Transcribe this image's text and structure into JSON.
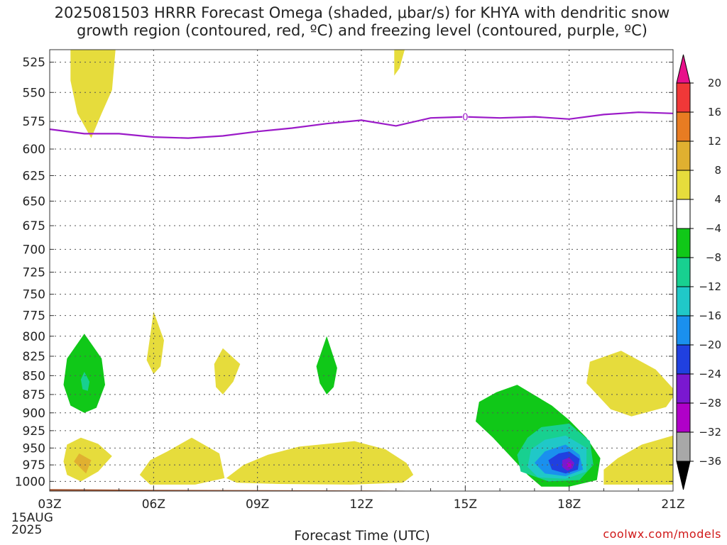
{
  "title": {
    "line1": "2025081503 HRRR Forecast Omega (shaded, μbar/s) for KHYA with dendritic snow",
    "line2": "growth region (contoured, red, ºC) and freezing level (contoured, purple, ºC)"
  },
  "watermark": "coolwx.com/models",
  "chart_data": {
    "type": "contour",
    "xlabel": "Forecast Time (UTC)",
    "x_ticks": [
      "03Z",
      "06Z",
      "09Z",
      "12Z",
      "15Z",
      "18Z",
      "21Z"
    ],
    "x_hours": [
      3,
      6,
      9,
      12,
      15,
      18,
      21
    ],
    "x_start_label": [
      "15AUG",
      "2025"
    ],
    "y_ticks": [
      525,
      550,
      575,
      600,
      625,
      650,
      675,
      700,
      725,
      750,
      775,
      800,
      825,
      850,
      875,
      900,
      925,
      950,
      975,
      1000
    ],
    "y_range": [
      515,
      1015
    ],
    "y_scale": "log-pressure",
    "grid": true,
    "colorbar": {
      "labels": [
        "20",
        "16",
        "12",
        "8",
        "4",
        "-4",
        "-8",
        "-12",
        "-16",
        "-20",
        "-24",
        "-28",
        "-32",
        "-36"
      ],
      "colors": [
        "#e8108a",
        "#f03838",
        "#e87c22",
        "#e0b030",
        "#e6dc3c",
        "#ffffff",
        "#10c818",
        "#18d090",
        "#20c8c8",
        "#1a90ee",
        "#2040e0",
        "#7a18d0",
        "#b000c8",
        "#a8a8a8",
        "#000000"
      ]
    },
    "freezing_level": {
      "color": "#9b1ac8",
      "label": "0",
      "x": [
        3,
        4,
        5,
        6,
        7,
        8,
        9,
        10,
        11,
        12,
        13,
        14,
        15,
        16,
        17,
        18,
        19,
        20,
        21
      ],
      "pressure": [
        582,
        586,
        586,
        589,
        590,
        588,
        584,
        581,
        577,
        574,
        579,
        572,
        571,
        572,
        571,
        573,
        569,
        567,
        568
      ]
    },
    "omega_regions": [
      {
        "name": "positive-4-8",
        "value": 4,
        "color": "#e6dc3c",
        "center_time": 4.2,
        "pressure_range": [
          515,
          590
        ]
      },
      {
        "name": "positive-4-8",
        "value": 4,
        "color": "#e6dc3c",
        "center_time": 13.0,
        "pressure_range": [
          515,
          535
        ]
      },
      {
        "name": "positive-4-8",
        "value": 4,
        "color": "#e6dc3c",
        "center_time": 6.0,
        "pressure_range": [
          780,
          840
        ]
      },
      {
        "name": "positive-4-8",
        "value": 4,
        "color": "#e6dc3c",
        "center_time": 8.0,
        "pressure_range": [
          815,
          875
        ]
      },
      {
        "name": "positive-4-8",
        "value": 4,
        "color": "#e6dc3c",
        "center_time": 4.0,
        "pressure_range": [
          930,
          1000
        ]
      },
      {
        "name": "positive-4-8",
        "value": 4,
        "color": "#e6dc3c",
        "center_time": 7.0,
        "pressure_range": [
          935,
          1005
        ]
      },
      {
        "name": "positive-4-8",
        "value": 4,
        "color": "#e6dc3c",
        "center_time": 10.5,
        "pressure_range": [
          935,
          1005
        ]
      },
      {
        "name": "positive-4-8",
        "value": 4,
        "color": "#e6dc3c",
        "center_time": 20.0,
        "pressure_range": [
          850,
          905
        ]
      },
      {
        "name": "positive-4-8",
        "value": 4,
        "color": "#e6dc3c",
        "center_time": 20.0,
        "pressure_range": [
          935,
          1005
        ]
      },
      {
        "name": "positive-8-12",
        "value": 8,
        "color": "#e0b030",
        "center_time": 4.0,
        "pressure_range": [
          960,
          985
        ]
      },
      {
        "name": "negative-4-8",
        "value": -4,
        "color": "#10c818",
        "center_time": 4.0,
        "pressure_range": [
          800,
          900
        ]
      },
      {
        "name": "negative-4-8",
        "value": -4,
        "color": "#10c818",
        "center_time": 11.0,
        "pressure_range": [
          810,
          870
        ]
      },
      {
        "name": "negative-4-8",
        "value": -4,
        "color": "#10c818",
        "center_time": 17.0,
        "pressure_range": [
          870,
          1010
        ]
      },
      {
        "name": "negative-8-12",
        "value": -8,
        "color": "#18d090",
        "center_time": 4.0,
        "pressure_range": [
          840,
          870
        ]
      },
      {
        "name": "negative-8-12",
        "value": -8,
        "color": "#18d090",
        "center_time": 17.6,
        "pressure_range": [
          915,
          1000
        ]
      },
      {
        "name": "negative-12-16",
        "value": -12,
        "color": "#20c8c8",
        "center_time": 17.8,
        "pressure_range": [
          930,
          995
        ]
      },
      {
        "name": "negative-16-20",
        "value": -16,
        "color": "#1a90ee",
        "center_time": 17.9,
        "pressure_range": [
          945,
          990
        ]
      },
      {
        "name": "negative-20-24",
        "value": -20,
        "color": "#2040e0",
        "center_time": 18.0,
        "pressure_range": [
          955,
          985
        ]
      },
      {
        "name": "negative-24-28",
        "value": -24,
        "color": "#7a18d0",
        "center_time": 18.0,
        "pressure_range": [
          965,
          980
        ]
      },
      {
        "name": "negative-28-32",
        "value": -28,
        "color": "#b000c8",
        "center_time": 18.0,
        "pressure_range": [
          970,
          978
        ]
      }
    ],
    "surface_pressure": {
      "color": "#a0522d",
      "x": [
        3,
        6,
        12,
        18,
        21
      ],
      "pressure": [
        1012,
        1013,
        1014,
        1016,
        1016
      ]
    }
  }
}
